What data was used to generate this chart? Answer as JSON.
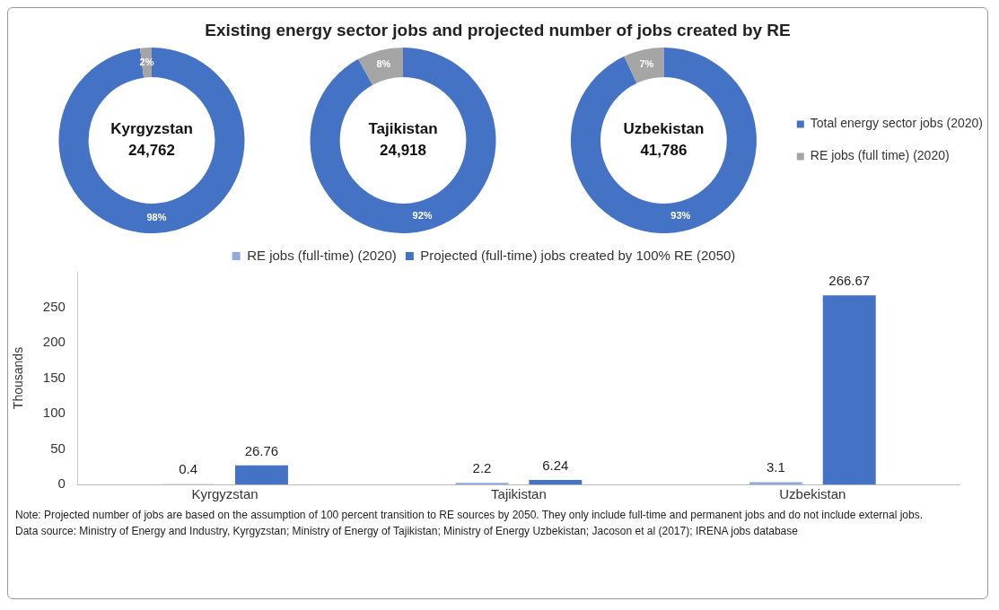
{
  "chart_data": [
    {
      "type": "donut",
      "title": "Existing energy sector jobs and projected number of jobs created by RE",
      "values": [
        98,
        2
      ],
      "colors": [
        "#4472c4",
        "#a5a5a5"
      ],
      "value_labels": [
        "98%",
        "2%"
      ],
      "annotations": [
        "Kyrgyzstan",
        "24,762"
      ]
    },
    {
      "type": "donut",
      "values": [
        92,
        8
      ],
      "colors": [
        "#4472c4",
        "#a5a5a5"
      ],
      "value_labels": [
        "92%",
        "8%"
      ],
      "annotations": [
        "Tajikistan",
        "24,918"
      ]
    },
    {
      "type": "donut",
      "categories": [
        "Total energy sector jobs (2020)",
        "RE jobs (full time) (2020)"
      ],
      "values": [
        93,
        7
      ],
      "colors": [
        "#4472c4",
        "#a5a5a5"
      ],
      "value_labels": [
        "93%",
        "7%"
      ],
      "annotations": [
        "Uzbekistan",
        "41,786"
      ],
      "legend": "right"
    },
    {
      "type": "bar",
      "categories": [
        "Kyrgyzstan",
        "Tajikistan",
        "Uzbekistan"
      ],
      "ylabel": "Thousands",
      "ylim": [
        0,
        300
      ],
      "yticks": [
        0,
        50,
        100,
        150,
        200,
        250
      ],
      "legend": "top",
      "data_labels": true,
      "series": [
        {
          "name": "RE jobs (full-time) (2020)",
          "color": "#8faadc",
          "values": [
            0.4,
            2.2,
            3.1
          ]
        },
        {
          "name": "Projected (full-time) jobs created by 100% RE (2050)",
          "color": "#4472c4",
          "values": [
            26.76,
            6.24,
            266.67
          ]
        }
      ],
      "annotations": [
        "Note: Projected number of jobs are based on the assumption of 100 percent transition to RE sources by 2050. They only include full-time and permanent jobs and do not include external jobs.",
        "Data source: Ministry of Energy and Industry, Kyrgyzstan; Ministry of Energy of Tajikistan; Ministry of Energy Uzbekistan; Jacoson et al (2017); IRENA jobs database"
      ]
    }
  ]
}
